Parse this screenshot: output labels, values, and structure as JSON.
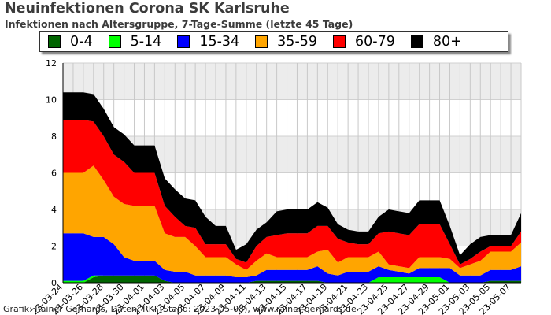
{
  "chart_data": {
    "type": "area",
    "stacked": true,
    "title": "Neuinfektionen Corona SK Karlsruhe",
    "subtitle": "Infektionen nach Altersgruppe, 7-Tage-Summe (letzte 45 Tage)",
    "ylim": [
      0,
      12
    ],
    "yticks": [
      0,
      2,
      4,
      6,
      8,
      10,
      12
    ],
    "grid": true,
    "legend_position": "top",
    "x": [
      "23-03-24",
      "23-03-25",
      "23-03-26",
      "23-03-27",
      "23-03-28",
      "23-03-29",
      "23-03-30",
      "23-03-31",
      "23-04-01",
      "23-04-02",
      "23-04-03",
      "23-04-04",
      "23-04-05",
      "23-04-06",
      "23-04-07",
      "23-04-08",
      "23-04-09",
      "23-04-10",
      "23-04-11",
      "23-04-12",
      "23-04-13",
      "23-04-14",
      "23-04-15",
      "23-04-16",
      "23-04-17",
      "23-04-18",
      "23-04-19",
      "23-04-20",
      "23-04-21",
      "23-04-22",
      "23-04-23",
      "23-04-24",
      "23-04-25",
      "23-04-26",
      "23-04-27",
      "23-04-28",
      "23-04-29",
      "23-04-30",
      "23-05-01",
      "23-05-02",
      "23-05-03",
      "23-05-04",
      "23-05-05",
      "23-05-06",
      "23-05-07",
      "23-05-08"
    ],
    "x_tick_labels": [
      "23-03-24",
      "23-03-26",
      "23-03-28",
      "23-03-30",
      "23-04-01",
      "23-04-03",
      "23-04-05",
      "23-04-07",
      "23-04-09",
      "23-04-11",
      "23-04-13",
      "23-04-15",
      "23-04-17",
      "23-04-19",
      "23-04-21",
      "23-04-23",
      "23-04-25",
      "23-04-27",
      "23-04-29",
      "23-05-01",
      "23-05-03",
      "23-05-05",
      "23-05-07"
    ],
    "series": [
      {
        "name": "0-4",
        "color": "#006400",
        "values": [
          0,
          0,
          0,
          0.3,
          0.4,
          0.4,
          0.4,
          0.4,
          0.4,
          0.4,
          0.1,
          0,
          0,
          0,
          0,
          0,
          0,
          0,
          0,
          0.1,
          0.1,
          0.1,
          0.1,
          0.1,
          0.1,
          0.1,
          0,
          0,
          0,
          0,
          0,
          0,
          0,
          0,
          0,
          0,
          0,
          0,
          0,
          0,
          0,
          0,
          0.1,
          0.1,
          0.1,
          0.1
        ]
      },
      {
        "name": "5-14",
        "color": "#00ff00",
        "values": [
          0.1,
          0.1,
          0.1,
          0.1,
          0,
          0,
          0,
          0,
          0,
          0,
          0,
          0,
          0,
          0,
          0,
          0,
          0,
          0,
          0,
          0,
          0,
          0,
          0,
          0,
          0,
          0,
          0,
          0,
          0,
          0,
          0,
          0.3,
          0.3,
          0.3,
          0.3,
          0.3,
          0.3,
          0.3,
          0,
          0,
          0,
          0,
          0,
          0,
          0,
          0
        ]
      },
      {
        "name": "15-34",
        "color": "#0000ff",
        "values": [
          2.6,
          2.6,
          2.6,
          2.1,
          2.1,
          1.7,
          1,
          0.8,
          0.8,
          0.8,
          0.6,
          0.6,
          0.6,
          0.4,
          0.4,
          0.4,
          0.4,
          0.3,
          0.3,
          0.3,
          0.6,
          0.6,
          0.6,
          0.6,
          0.6,
          0.8,
          0.5,
          0.4,
          0.6,
          0.6,
          0.6,
          0.6,
          0.4,
          0.3,
          0.2,
          0.5,
          0.5,
          0.5,
          0.8,
          0.4,
          0.4,
          0.4,
          0.6,
          0.6,
          0.6,
          0.8
        ]
      },
      {
        "name": "35-59",
        "color": "#ffa500",
        "values": [
          3.3,
          3.3,
          3.3,
          3.9,
          3.1,
          2.6,
          2.9,
          3,
          3,
          3,
          2,
          1.9,
          1.9,
          1.6,
          1,
          1,
          1,
          0.7,
          0.4,
          0.8,
          0.9,
          0.7,
          0.7,
          0.7,
          0.7,
          0.8,
          1.3,
          0.7,
          0.8,
          0.8,
          0.8,
          0.8,
          0.3,
          0.3,
          0.3,
          0.6,
          0.6,
          0.6,
          0.5,
          0.4,
          0.6,
          0.8,
          1,
          1,
          1,
          1.3
        ]
      },
      {
        "name": "60-79",
        "color": "#ff0000",
        "values": [
          2.9,
          2.9,
          2.9,
          2.4,
          2.4,
          2.3,
          2.3,
          1.8,
          1.8,
          1.8,
          1.5,
          1.1,
          0.6,
          1,
          0.7,
          0.7,
          0.7,
          0.3,
          0.4,
          0.8,
          0.9,
          1.2,
          1.3,
          1.3,
          1.3,
          1.4,
          1.3,
          1.3,
          0.8,
          0.7,
          0.7,
          1,
          1.8,
          1.8,
          1.8,
          1.8,
          1.8,
          1.8,
          0.8,
          0.2,
          0.3,
          0.5,
          0.3,
          0.3,
          0.3,
          0.6
        ]
      },
      {
        "name": "80+",
        "color": "#000000",
        "values": [
          1.5,
          1.5,
          1.5,
          1.5,
          1.5,
          1.5,
          1.5,
          1.5,
          1.5,
          1.5,
          1.5,
          1.5,
          1.5,
          1.5,
          1.5,
          1,
          1,
          0.5,
          1,
          0.9,
          0.8,
          1.3,
          1.3,
          1.3,
          1.3,
          1.3,
          1,
          0.8,
          0.7,
          0.7,
          0.7,
          0.9,
          1.2,
          1.2,
          1.2,
          1.3,
          1.3,
          1.3,
          1,
          0.5,
          0.8,
          0.8,
          0.6,
          0.6,
          0.6,
          1
        ]
      }
    ]
  },
  "footer": "Grafik: Rainer Gerhards, Daten: RKI (Stand: 2023-05-08), www.rainer-gerhards.de"
}
